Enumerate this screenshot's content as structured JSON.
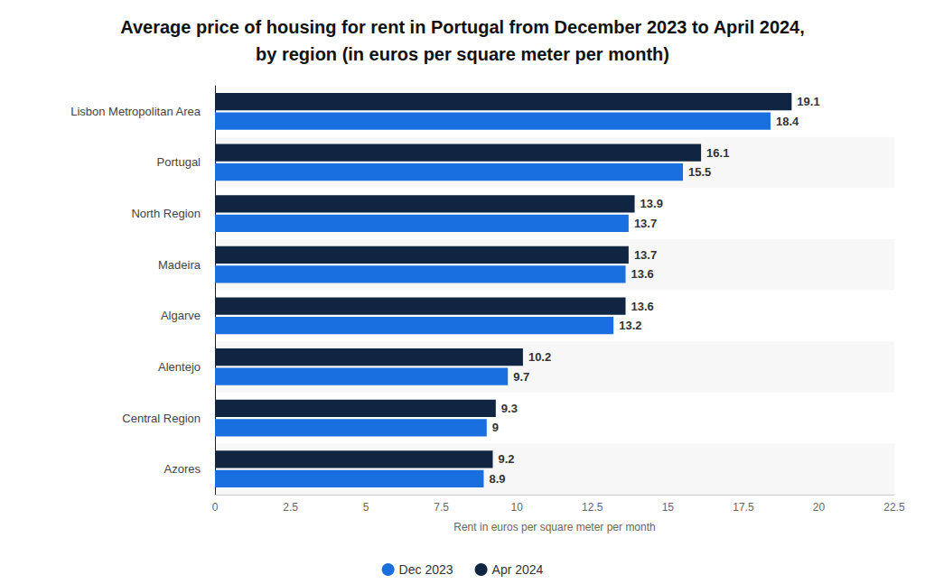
{
  "chart_data": {
    "type": "bar",
    "orientation": "horizontal",
    "title": "Average price of housing for rent in Portugal from December 2023 to April 2024,\nby region (in euros per square meter per month)",
    "x_label": "Rent in euros per square meter per month",
    "categories": [
      "Lisbon Metropolitan Area",
      "Portugal",
      "North Region",
      "Madeira",
      "Algarve",
      "Alentejo",
      "Central Region",
      "Azores"
    ],
    "series": [
      {
        "name": "Dec 2023",
        "color": "#1a6fe0",
        "values": [
          18.4,
          15.5,
          13.7,
          13.6,
          13.2,
          9.7,
          9,
          8.9
        ]
      },
      {
        "name": "Apr 2024",
        "color": "#0f2541",
        "values": [
          19.1,
          16.1,
          13.9,
          13.7,
          13.6,
          10.2,
          9.3,
          9.2
        ]
      }
    ],
    "xlim": [
      0,
      22.5
    ],
    "xticks": [
      0,
      2.5,
      5,
      7.5,
      10,
      12.5,
      15,
      17.5,
      20,
      22.5
    ],
    "grid": false,
    "legend": "bottom",
    "data_labels": true
  }
}
